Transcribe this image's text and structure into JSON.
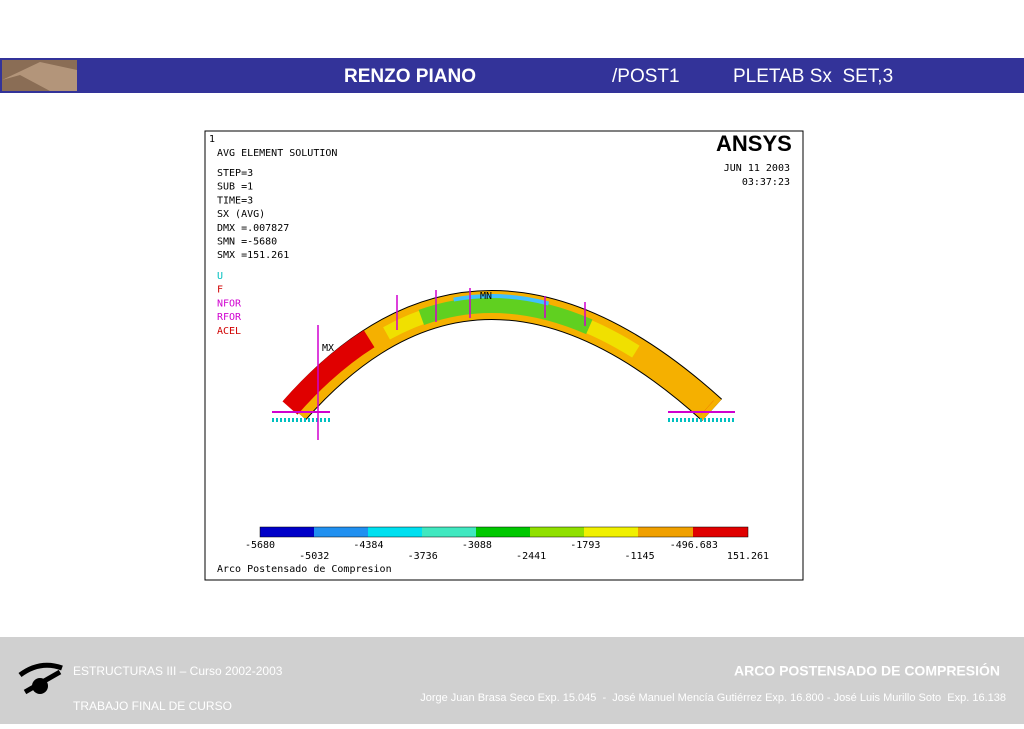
{
  "header": {
    "title": "RENZO PIANO",
    "module": "/POST1",
    "command": "PLETAB Sx  SET,3"
  },
  "plot": {
    "window_number": "1",
    "heading": "AVG ELEMENT SOLUTION",
    "info": [
      "STEP=3",
      "SUB =1",
      "TIME=3",
      "SX       (AVG)",
      "DMX =.007827",
      "SMN =-5680",
      "SMX =151.261"
    ],
    "symbols": [
      "U",
      "F",
      "NFOR",
      "RFOR",
      "ACEL"
    ],
    "logo": "ANSYS",
    "date": "JUN 11 2003",
    "time": "03:37:23",
    "min_label": "MN",
    "max_label": "MX",
    "contour_labels": [
      "-5680",
      "-5032",
      "-4384",
      "-3736",
      "-3088",
      "-2441",
      "-1793",
      "-1145",
      "-496.683",
      "151.261"
    ],
    "caption": "Arco Postensado de Compresion"
  },
  "footer": {
    "course": "ESTRUCTURAS III – Curso 2002-2003",
    "subtitle": "TRABAJO FINAL DE CURSO",
    "topic": "ARCO POSTENSADO DE COMPRESIÓN",
    "authors": "Jorge Juan Brasa Seco Exp. 15.045  -  José Manuel Mencía Gutiérrez Exp. 16.800 - José Luis Murillo Soto  Exp. 16.138"
  }
}
